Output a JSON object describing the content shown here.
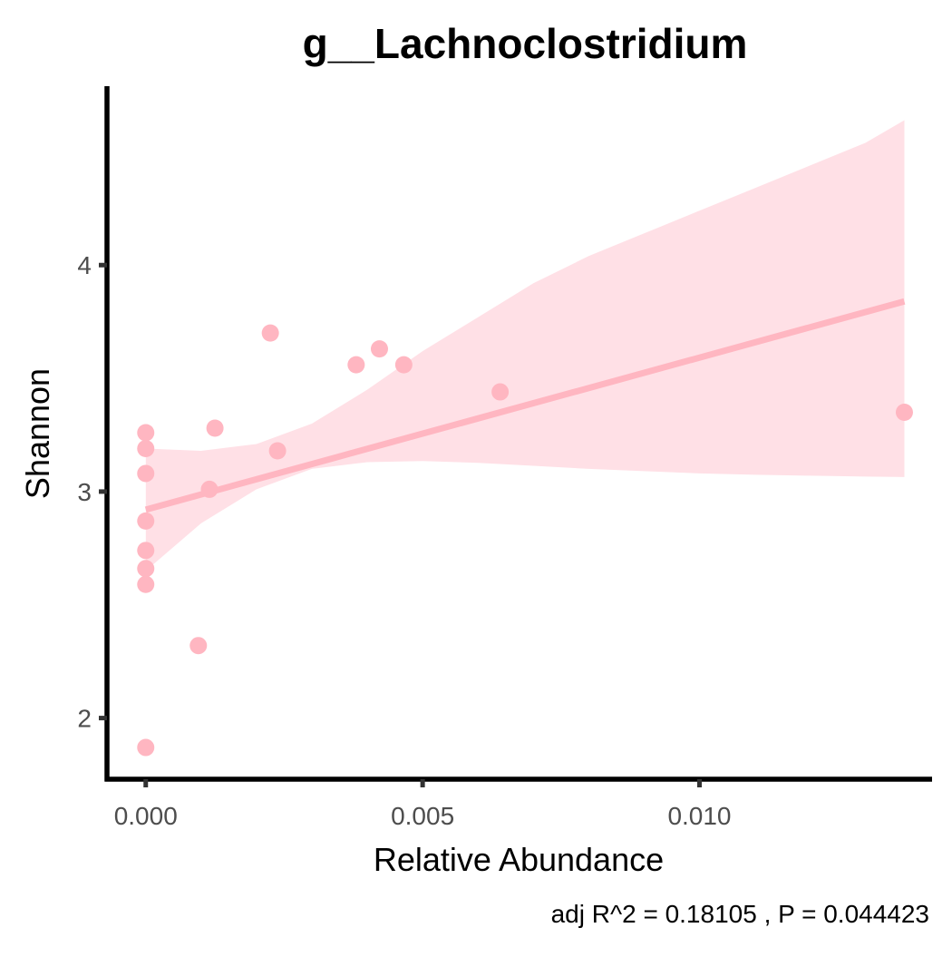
{
  "chart_data": {
    "type": "scatter",
    "title": "g__Lachnoclostridium",
    "xlabel": "Relative Abundance",
    "ylabel": "Shannon",
    "caption": "adj R^2 =  0.18105 , P = 0.044423",
    "xlim": [
      -0.0007,
      0.0142
    ],
    "ylim": [
      1.73,
      4.79
    ],
    "x_ticks": [
      0.0,
      0.005,
      0.01
    ],
    "x_tick_labels": [
      "0.000",
      "0.005",
      "0.010"
    ],
    "y_ticks": [
      2,
      3,
      4
    ],
    "y_tick_labels": [
      "2",
      "3",
      "4"
    ],
    "grid": false,
    "legend": "none",
    "colors": {
      "point": "#ffb6c1",
      "fit_line": "#ffb6c1",
      "ribbon": "#ffe0e6",
      "axis": "#000000"
    },
    "points": [
      {
        "x": 0.0,
        "y": 3.26
      },
      {
        "x": 0.0,
        "y": 3.19
      },
      {
        "x": 0.0,
        "y": 3.08
      },
      {
        "x": 0.0,
        "y": 2.87
      },
      {
        "x": 0.0,
        "y": 2.74
      },
      {
        "x": 0.0,
        "y": 2.66
      },
      {
        "x": 0.0,
        "y": 2.59
      },
      {
        "x": 0.0,
        "y": 1.87
      },
      {
        "x": 0.00095,
        "y": 2.32
      },
      {
        "x": 0.00115,
        "y": 3.01
      },
      {
        "x": 0.00125,
        "y": 3.28
      },
      {
        "x": 0.00225,
        "y": 3.7
      },
      {
        "x": 0.00238,
        "y": 3.18
      },
      {
        "x": 0.0038,
        "y": 3.56
      },
      {
        "x": 0.00422,
        "y": 3.63
      },
      {
        "x": 0.00466,
        "y": 3.56
      },
      {
        "x": 0.0064,
        "y": 3.44
      },
      {
        "x": 0.0137,
        "y": 3.35
      }
    ],
    "fit": {
      "x": [
        0.0,
        0.0137
      ],
      "y": [
        2.92,
        3.84
      ]
    },
    "ribbon": {
      "x": [
        0.0,
        0.001,
        0.002,
        0.003,
        0.004,
        0.005,
        0.006,
        0.007,
        0.008,
        0.009,
        0.01,
        0.011,
        0.012,
        0.013,
        0.0137
      ],
      "lower": [
        2.65,
        2.86,
        3.01,
        3.1,
        3.13,
        3.135,
        3.127,
        3.114,
        3.1,
        3.09,
        3.08,
        3.074,
        3.07,
        3.066,
        3.064
      ],
      "upper": [
        3.19,
        3.18,
        3.21,
        3.3,
        3.45,
        3.62,
        3.77,
        3.92,
        4.04,
        4.14,
        4.24,
        4.34,
        4.44,
        4.54,
        4.64
      ]
    }
  }
}
